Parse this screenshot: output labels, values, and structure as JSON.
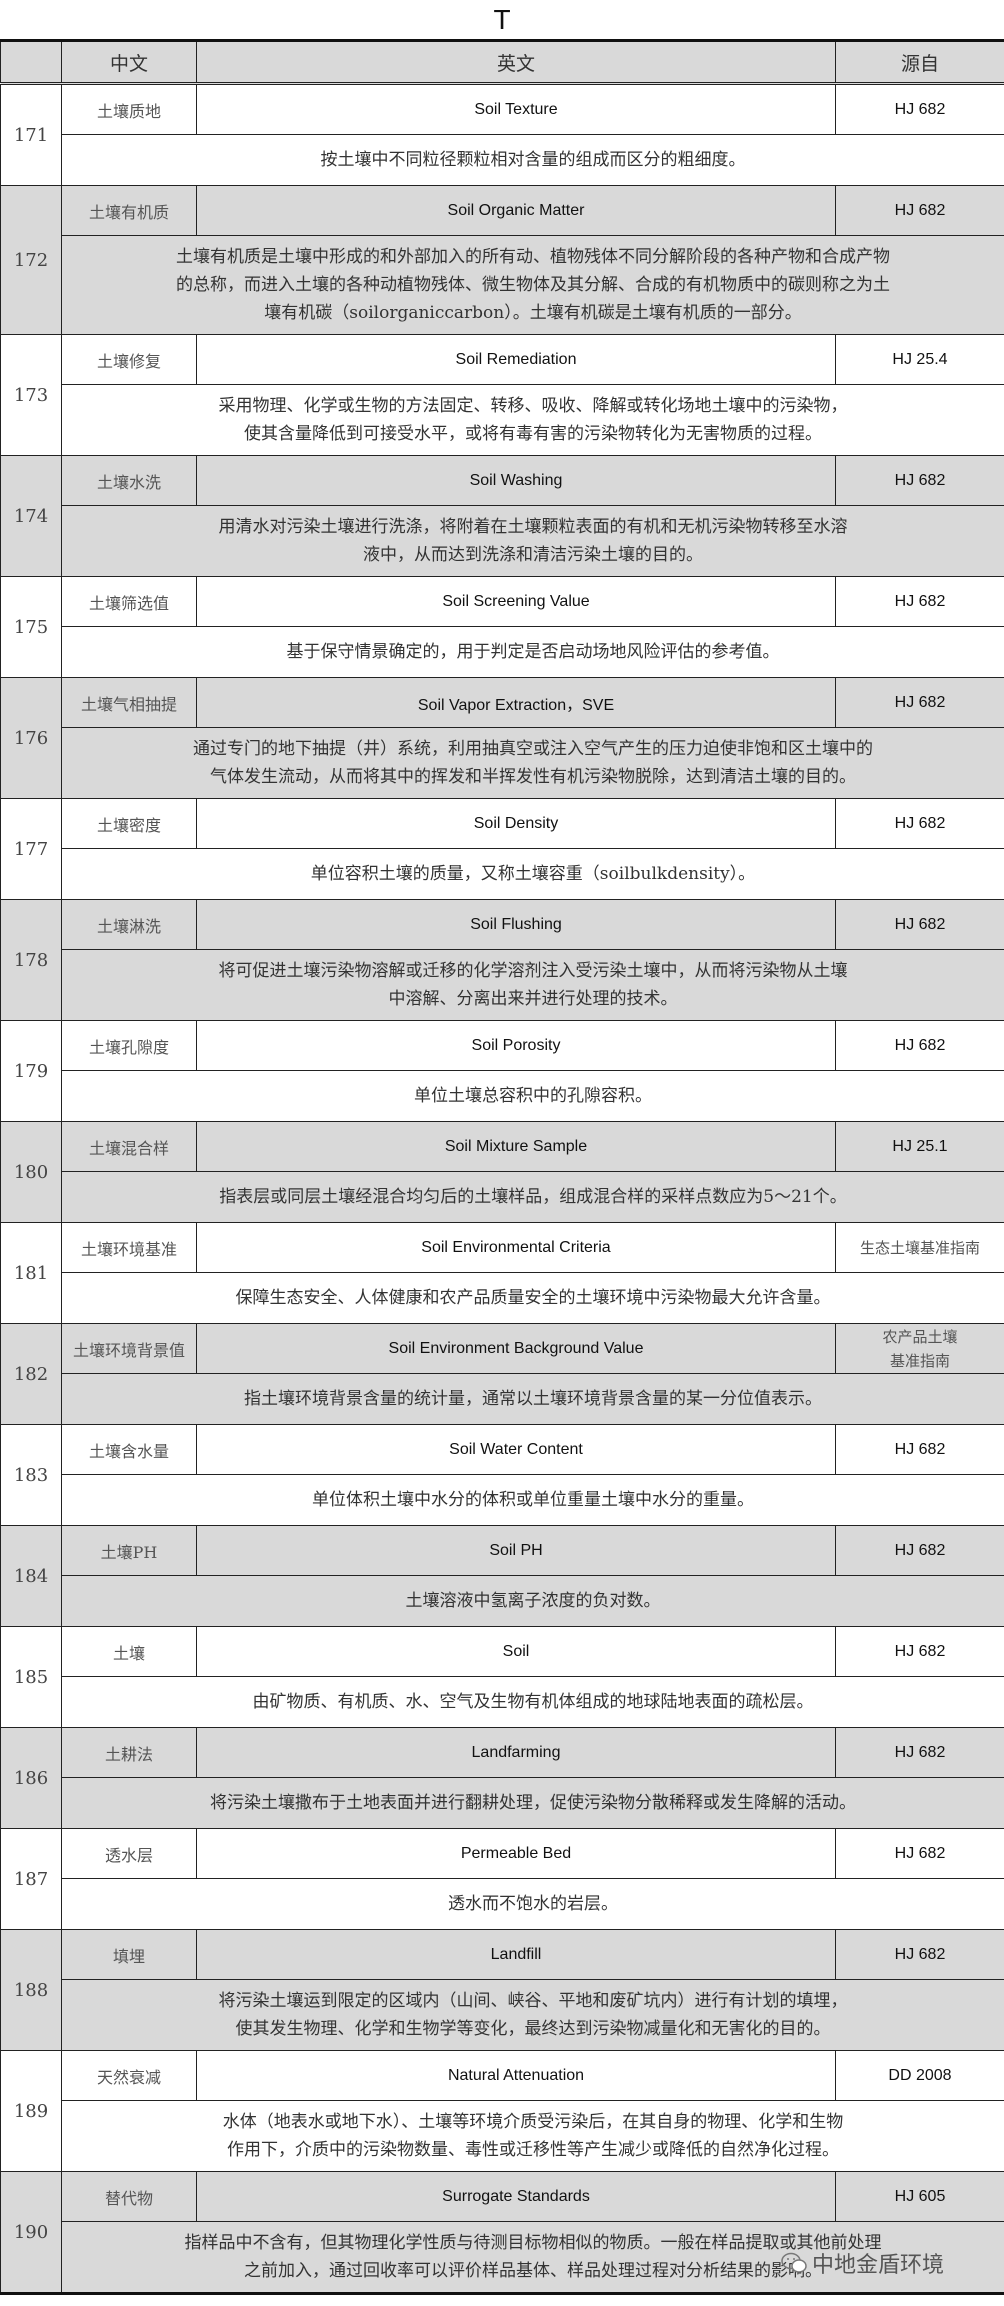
{
  "title": "T",
  "headers": {
    "cn": "中文",
    "en": "英文",
    "src": "源自"
  },
  "rows": [
    {
      "num": "171",
      "cn": "土壤质地",
      "en": "Soil Texture",
      "src": "HJ 682",
      "desc": [
        "按土壤中不同粒径颗粒相对含量的组成而区分的粗细度。"
      ]
    },
    {
      "num": "172",
      "cn": "土壤有机质",
      "en": "Soil Organic Matter",
      "src": "HJ 682",
      "desc": [
        "土壤有机质是土壤中形成的和外部加入的所有动、植物残体不同分解阶段的各种产物和合成产物",
        "的总称，而进入土壤的各种动植物残体、微生物体及其分解、合成的有机物质中的碳则称之为土",
        "壤有机碳（soilorganiccarbon）。土壤有机碳是土壤有机质的一部分。"
      ]
    },
    {
      "num": "173",
      "cn": "土壤修复",
      "en": "Soil Remediation",
      "src": "HJ 25.4",
      "desc": [
        "采用物理、化学或生物的方法固定、转移、吸收、降解或转化场地土壤中的污染物，",
        "使其含量降低到可接受水平，或将有毒有害的污染物转化为无害物质的过程。"
      ]
    },
    {
      "num": "174",
      "cn": "土壤水洗",
      "en": "Soil Washing",
      "src": "HJ 682",
      "desc": [
        "用清水对污染土壤进行洗涤，将附着在土壤颗粒表面的有机和无机污染物转移至水溶",
        "液中，从而达到洗涤和清洁污染土壤的目的。"
      ]
    },
    {
      "num": "175",
      "cn": "土壤筛选值",
      "en": "Soil Screening Value",
      "src": "HJ 682",
      "desc": [
        "基于保守情景确定的，用于判定是否启动场地风险评估的参考值。"
      ]
    },
    {
      "num": "176",
      "cn": "土壤气相抽提",
      "en": "Soil Vapor Extraction，SVE",
      "src": "HJ 682",
      "desc": [
        "通过专门的地下抽提（井）系统，利用抽真空或注入空气产生的压力迫使非饱和区土壤中的",
        "气体发生流动，从而将其中的挥发和半挥发性有机污染物脱除，达到清洁土壤的目的。"
      ]
    },
    {
      "num": "177",
      "cn": "土壤密度",
      "en": "Soil Density",
      "src": "HJ 682",
      "desc": [
        "单位容积土壤的质量，又称土壤容重（soilbulkdensity）。"
      ]
    },
    {
      "num": "178",
      "cn": "土壤淋洗",
      "en": "Soil Flushing",
      "src": "HJ 682",
      "desc": [
        "将可促进土壤污染物溶解或迁移的化学溶剂注入受污染土壤中，从而将污染物从土壤",
        "中溶解、分离出来并进行处理的技术。"
      ]
    },
    {
      "num": "179",
      "cn": "土壤孔隙度",
      "en": "Soil Porosity",
      "src": "HJ 682",
      "desc": [
        "单位土壤总容积中的孔隙容积。"
      ]
    },
    {
      "num": "180",
      "cn": "土壤混合样",
      "en": "Soil Mixture Sample",
      "src": "HJ 25.1",
      "desc": [
        "指表层或同层土壤经混合均匀后的土壤样品，组成混合样的采样点数应为5～21个。"
      ]
    },
    {
      "num": "181",
      "cn": "土壤环境基准",
      "en": "Soil Environmental Criteria",
      "src": "生态土壤基准指南",
      "src_zh": true,
      "desc": [
        "保障生态安全、人体健康和农产品质量安全的土壤环境中污染物最大允许含量。"
      ]
    },
    {
      "num": "182",
      "cn": "土壤环境背景值",
      "en": "Soil Environment Background Value",
      "src": "农产品土壤基准指南",
      "src_zh": true,
      "desc": [
        "指土壤环境背景含量的统计量，通常以土壤环境背景含量的某一分位值表示。"
      ]
    },
    {
      "num": "183",
      "cn": "土壤含水量",
      "en": "Soil Water Content",
      "src": "HJ 682",
      "desc": [
        "单位体积土壤中水分的体积或单位重量土壤中水分的重量。"
      ]
    },
    {
      "num": "184",
      "cn": "土壤PH",
      "en": "Soil PH",
      "src": "HJ 682",
      "desc": [
        "土壤溶液中氢离子浓度的负对数。"
      ]
    },
    {
      "num": "185",
      "cn": "土壤",
      "en": "Soil",
      "src": "HJ 682",
      "desc": [
        "由矿物质、有机质、水、空气及生物有机体组成的地球陆地表面的疏松层。"
      ]
    },
    {
      "num": "186",
      "cn": "土耕法",
      "en": "Landfarming",
      "src": "HJ 682",
      "desc": [
        "将污染土壤撒布于土地表面并进行翻耕处理，促使污染物分散稀释或发生降解的活动。"
      ]
    },
    {
      "num": "187",
      "cn": "透水层",
      "en": "Permeable Bed",
      "src": "HJ 682",
      "desc": [
        "透水而不饱水的岩层。"
      ]
    },
    {
      "num": "188",
      "cn": "填埋",
      "en": "Landfill",
      "src": "HJ 682",
      "desc": [
        "将污染土壤运到限定的区域内（山间、峡谷、平地和废矿坑内）进行有计划的填埋，",
        "使其发生物理、化学和生物学等变化，最终达到污染物减量化和无害化的目的。"
      ]
    },
    {
      "num": "189",
      "cn": "天然衰减",
      "en": "Natural Attenuation",
      "src": "DD 2008",
      "desc": [
        "水体（地表水或地下水）、土壤等环境介质受污染后，在其自身的物理、化学和生物",
        "作用下，介质中的污染物数量、毒性或迁移性等产生减少或降低的自然净化过程。"
      ]
    },
    {
      "num": "190",
      "cn": "替代物",
      "en": "Surrogate Standards",
      "src": "HJ 605",
      "desc": [
        "指样品中不含有，但其物理化学性质与待测目标物相似的物质。一般在样品提取或其他前处理",
        "之前加入，通过回收率可以评价样品基体、样品处理过程对分析结果的影响。"
      ]
    }
  ],
  "watermark": {
    "text": "中地金盾环境",
    "icon": "wechat-icon"
  },
  "colors": {
    "grey_row": "#d9d9d9",
    "border": "#222222"
  }
}
